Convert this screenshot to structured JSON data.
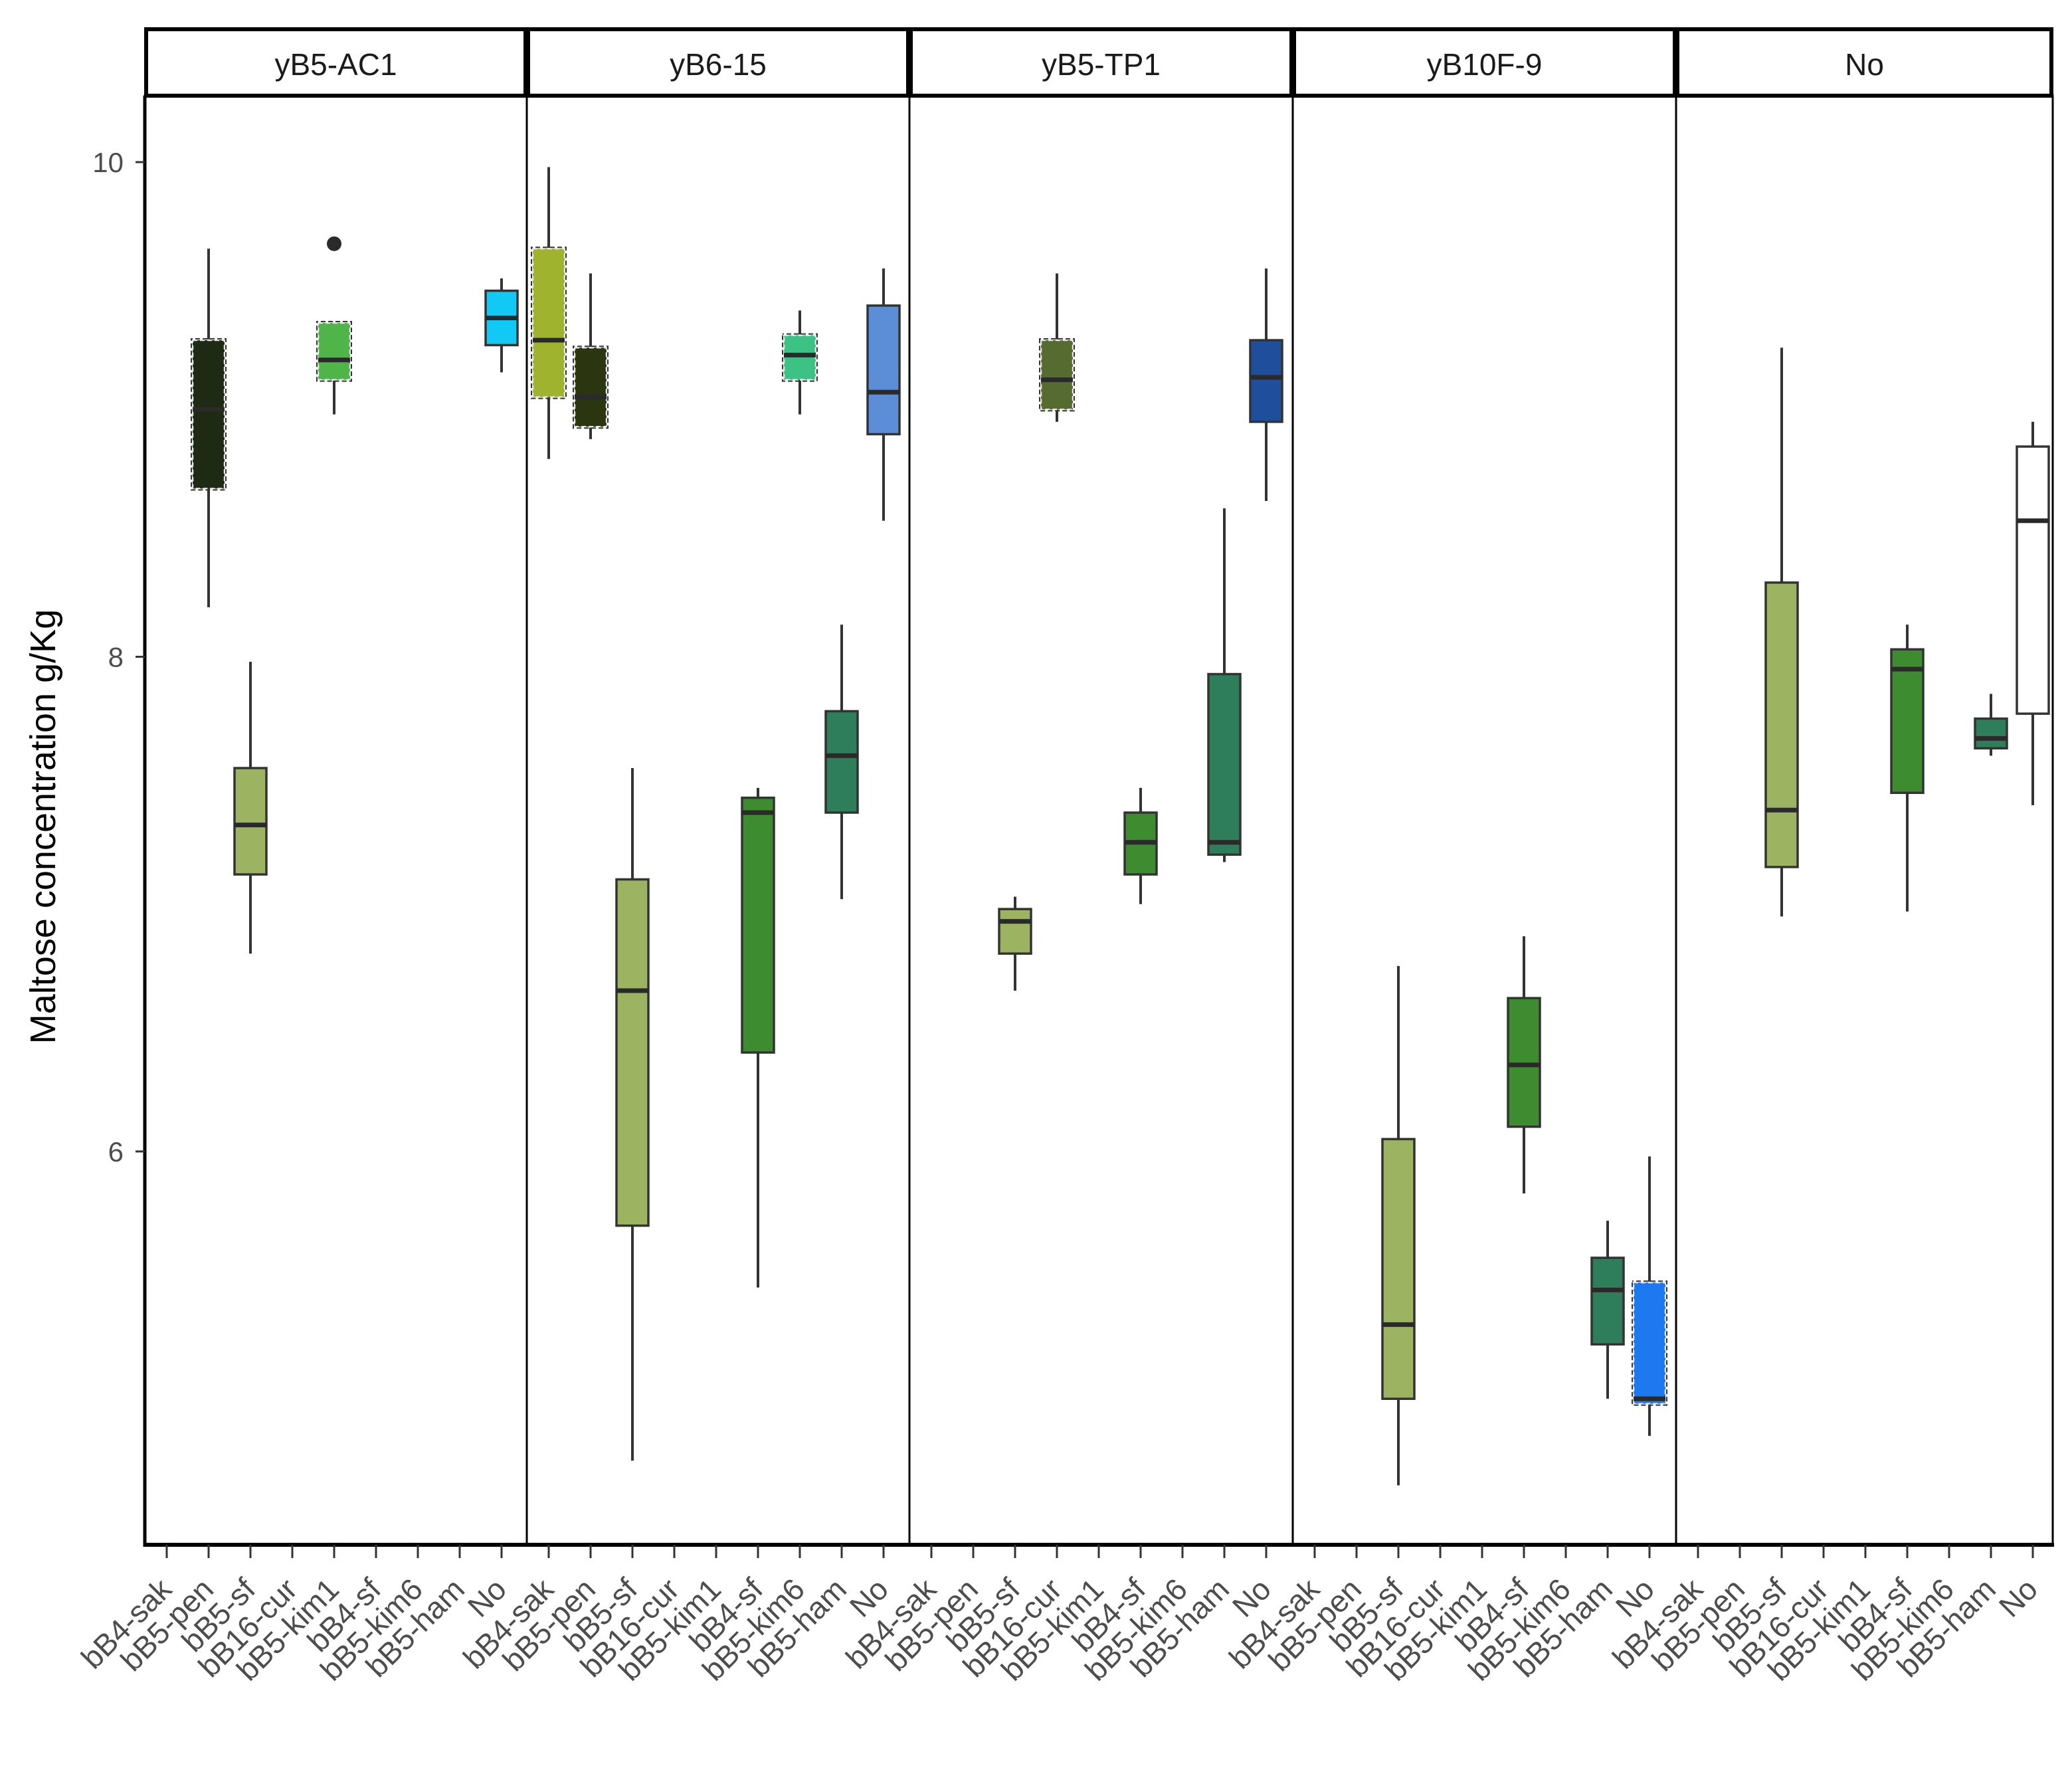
{
  "chart_data": {
    "type": "boxplot",
    "title": "",
    "xlabel": "",
    "ylabel": "Maltose concentration g/Kg",
    "ylim": [
      4.35,
      10.45
    ],
    "yticks": [
      6,
      8,
      10
    ],
    "categories": [
      "bB4-sak",
      "bB5-pen",
      "bB5-sf",
      "bB16-cur",
      "bB5-kim1",
      "bB4-sf",
      "bB5-kim6",
      "bB5-ham",
      "No"
    ],
    "panels": [
      {
        "label": "yB5-AC1",
        "boxes": [
          {
            "category": "bB5-pen",
            "min": 8.2,
            "q1": 8.68,
            "median": 9.0,
            "q3": 9.28,
            "max": 9.65,
            "color": "#1e2a14",
            "dashed": true,
            "outliers": []
          },
          {
            "category": "bB5-sf",
            "min": 6.8,
            "q1": 7.12,
            "median": 7.32,
            "q3": 7.55,
            "max": 7.98,
            "color": "#9cb461",
            "dashed": false,
            "outliers": []
          },
          {
            "category": "bB5-kim1",
            "min": 8.98,
            "q1": 9.12,
            "median": 9.2,
            "q3": 9.35,
            "max": 9.35,
            "color": "#4fb548",
            "dashed": true,
            "outliers": [
              9.67
            ]
          },
          {
            "category": "No",
            "min": 9.15,
            "q1": 9.26,
            "median": 9.37,
            "q3": 9.48,
            "max": 9.53,
            "color": "#12c8f5",
            "dashed": false,
            "outliers": []
          }
        ]
      },
      {
        "label": "yB6-15",
        "boxes": [
          {
            "category": "bB4-sak",
            "min": 8.8,
            "q1": 9.05,
            "median": 9.28,
            "q3": 9.65,
            "max": 9.98,
            "color": "#a0b32f",
            "dashed": true,
            "outliers": []
          },
          {
            "category": "bB5-pen",
            "min": 8.88,
            "q1": 8.93,
            "median": 9.05,
            "q3": 9.25,
            "max": 9.55,
            "color": "#2b3510",
            "dashed": true,
            "outliers": []
          },
          {
            "category": "bB5-sf",
            "min": 4.75,
            "q1": 5.7,
            "median": 6.65,
            "q3": 7.1,
            "max": 7.55,
            "color": "#9cb461",
            "dashed": false,
            "outliers": []
          },
          {
            "category": "bB4-sf",
            "min": 5.45,
            "q1": 6.4,
            "median": 7.37,
            "q3": 7.43,
            "max": 7.47,
            "color": "#3d8c30",
            "dashed": false,
            "outliers": []
          },
          {
            "category": "bB5-kim6",
            "min": 8.98,
            "q1": 9.12,
            "median": 9.22,
            "q3": 9.3,
            "max": 9.4,
            "color": "#3dc285",
            "dashed": true,
            "outliers": []
          },
          {
            "category": "bB5-ham",
            "min": 7.02,
            "q1": 7.37,
            "median": 7.6,
            "q3": 7.78,
            "max": 8.13,
            "color": "#2e7d5b",
            "dashed": false,
            "outliers": []
          },
          {
            "category": "No",
            "min": 8.55,
            "q1": 8.9,
            "median": 9.07,
            "q3": 9.42,
            "max": 9.57,
            "color": "#5b8ed6",
            "dashed": false,
            "outliers": []
          }
        ]
      },
      {
        "label": "yB5-TP1",
        "boxes": [
          {
            "category": "bB5-sf",
            "min": 6.65,
            "q1": 6.8,
            "median": 6.93,
            "q3": 6.98,
            "max": 7.03,
            "color": "#9cb461",
            "dashed": false,
            "outliers": []
          },
          {
            "category": "bB16-cur",
            "min": 8.95,
            "q1": 9.0,
            "median": 9.12,
            "q3": 9.28,
            "max": 9.55,
            "color": "#556b2f",
            "dashed": true,
            "outliers": []
          },
          {
            "category": "bB4-sf",
            "min": 7.0,
            "q1": 7.12,
            "median": 7.25,
            "q3": 7.37,
            "max": 7.47,
            "color": "#3d8c30",
            "dashed": false,
            "outliers": []
          },
          {
            "category": "bB5-ham",
            "min": 7.17,
            "q1": 7.2,
            "median": 7.25,
            "q3": 7.93,
            "max": 8.6,
            "color": "#2e7d5b",
            "dashed": false,
            "outliers": []
          },
          {
            "category": "No",
            "min": 8.63,
            "q1": 8.95,
            "median": 9.13,
            "q3": 9.28,
            "max": 9.57,
            "color": "#1f4f9c",
            "dashed": false,
            "outliers": []
          }
        ]
      },
      {
        "label": "yB10F-9",
        "boxes": [
          {
            "category": "bB5-sf",
            "min": 4.65,
            "q1": 5.0,
            "median": 5.3,
            "q3": 6.05,
            "max": 6.75,
            "color": "#9cb461",
            "dashed": false,
            "outliers": []
          },
          {
            "category": "bB4-sf",
            "min": 5.83,
            "q1": 6.1,
            "median": 6.35,
            "q3": 6.62,
            "max": 6.87,
            "color": "#3d8c30",
            "dashed": false,
            "outliers": []
          },
          {
            "category": "bB5-ham",
            "min": 5.0,
            "q1": 5.22,
            "median": 5.44,
            "q3": 5.57,
            "max": 5.72,
            "color": "#2e7d5b",
            "dashed": false,
            "outliers": []
          },
          {
            "category": "No",
            "min": 4.85,
            "q1": 4.98,
            "median": 5.0,
            "q3": 5.47,
            "max": 5.98,
            "color": "#1e78f0",
            "dashed": true,
            "outliers": []
          }
        ]
      },
      {
        "label": "No",
        "boxes": [
          {
            "category": "bB5-sf",
            "min": 6.95,
            "q1": 7.15,
            "median": 7.38,
            "q3": 8.3,
            "max": 9.25,
            "color": "#9cb461",
            "dashed": false,
            "outliers": []
          },
          {
            "category": "bB4-sf",
            "min": 6.97,
            "q1": 7.45,
            "median": 7.95,
            "q3": 8.03,
            "max": 8.13,
            "color": "#3d8c30",
            "dashed": false,
            "outliers": []
          },
          {
            "category": "bB5-ham",
            "min": 7.6,
            "q1": 7.63,
            "median": 7.67,
            "q3": 7.75,
            "max": 7.85,
            "color": "#2e7d5b",
            "dashed": false,
            "outliers": []
          },
          {
            "category": "No",
            "min": 7.4,
            "q1": 7.77,
            "median": 8.55,
            "q3": 8.85,
            "max": 8.95,
            "color": "#ffffff",
            "dashed": false,
            "outliers": []
          }
        ]
      }
    ]
  }
}
